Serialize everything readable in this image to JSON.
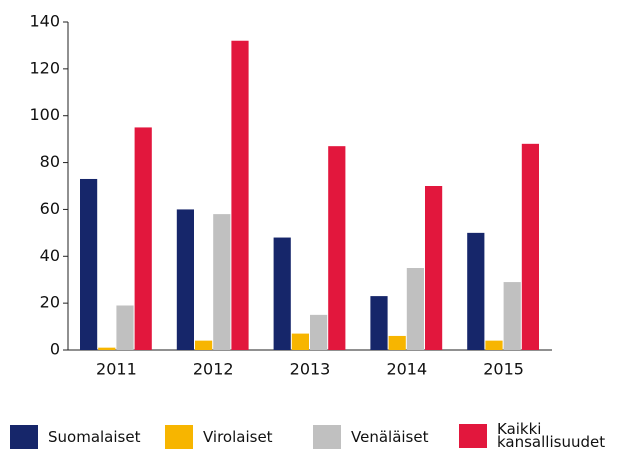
{
  "chart_data": {
    "type": "bar",
    "categories": [
      "2011",
      "2012",
      "2013",
      "2014",
      "2015"
    ],
    "series": [
      {
        "name": "Suomalaiset",
        "color": "#16266a",
        "values": [
          73,
          60,
          48,
          23,
          50
        ]
      },
      {
        "name": "Virolaiset",
        "color": "#f7b500",
        "values": [
          1,
          4,
          7,
          6,
          4
        ]
      },
      {
        "name": "Venäläiset",
        "color": "#c0c0c0",
        "values": [
          19,
          58,
          15,
          35,
          29
        ]
      },
      {
        "name": "Kaikki kansallisuudet",
        "color": "#e2173d",
        "values": [
          95,
          132,
          87,
          70,
          88
        ]
      }
    ],
    "ylim": [
      0,
      140
    ],
    "yticks": [
      0,
      20,
      40,
      60,
      80,
      100,
      120,
      140
    ],
    "grid": false
  }
}
